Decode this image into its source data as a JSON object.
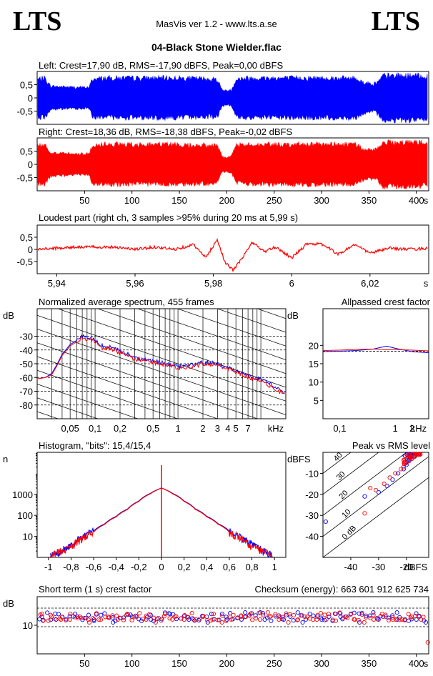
{
  "header": {
    "logo_left": "LTS",
    "logo_right": "LTS",
    "app_title": "MasVis ver 1.2 - www.lts.a.se",
    "file_name": "04-Black Stone Wielder.flac"
  },
  "colors": {
    "left": "#0000ff",
    "right": "#ff0000",
    "axis": "#000000",
    "grid": "#000000"
  },
  "chart_data": [
    {
      "id": "left-waveform",
      "type": "area",
      "title": "Left: Crest=17,90 dB, RMS=-17,90 dBFS, Peak=0,00 dBFS",
      "xlabel": "s",
      "ylim": [
        -1,
        1
      ],
      "xlim": [
        0,
        413
      ],
      "yticks": [
        "0,5",
        "0",
        "-0,5"
      ],
      "ytick_values": [
        0.5,
        0,
        -0.5
      ],
      "envelope_x": [
        0,
        8,
        14,
        40,
        55,
        58,
        70,
        100,
        150,
        190,
        195,
        200,
        205,
        210,
        220,
        250,
        300,
        335,
        345,
        355,
        360,
        365,
        370,
        400,
        413
      ],
      "envelope": [
        0.8,
        0.85,
        0.5,
        0.45,
        0.45,
        0.8,
        0.85,
        0.85,
        0.85,
        0.8,
        0.35,
        0.3,
        0.35,
        0.8,
        0.85,
        0.85,
        0.85,
        0.85,
        0.65,
        0.6,
        0.7,
        0.95,
        0.95,
        0.95,
        0.9
      ]
    },
    {
      "id": "right-waveform",
      "type": "area",
      "title": "Right: Crest=18,36 dB, RMS=-18,38 dBFS, Peak=-0,02 dBFS",
      "xlabel": "s",
      "ylim": [
        -1,
        1
      ],
      "xlim": [
        0,
        413
      ],
      "yticks": [
        "0,5",
        "0",
        "-0,5"
      ],
      "ytick_values": [
        0.5,
        0,
        -0.5
      ],
      "xticks": [
        "50",
        "100",
        "150",
        "200",
        "250",
        "300",
        "350",
        "400"
      ],
      "xtick_values": [
        50,
        100,
        150,
        200,
        250,
        300,
        350,
        400
      ],
      "envelope_x": [
        0,
        8,
        14,
        40,
        55,
        58,
        70,
        100,
        150,
        190,
        195,
        200,
        205,
        210,
        220,
        250,
        300,
        335,
        345,
        355,
        360,
        365,
        370,
        400,
        413
      ],
      "envelope": [
        0.8,
        0.85,
        0.5,
        0.45,
        0.45,
        0.8,
        0.85,
        0.85,
        0.85,
        0.8,
        0.35,
        0.3,
        0.35,
        0.8,
        0.85,
        0.85,
        0.85,
        0.85,
        0.65,
        0.6,
        0.7,
        0.95,
        0.95,
        0.95,
        0.9
      ]
    },
    {
      "id": "loudest-part",
      "type": "line",
      "title": "Loudest part (right ch, 3 samples >95% during 20 ms at 5,99 s)",
      "xlabel": "s",
      "xlim": [
        5.935,
        6.035
      ],
      "ylim": [
        -1,
        1
      ],
      "yticks": [
        "0,5",
        "0",
        "-0,5"
      ],
      "ytick_values": [
        0.5,
        0,
        -0.5
      ],
      "xticks": [
        "5,94",
        "5,96",
        "5,98",
        "6",
        "6,02"
      ],
      "xtick_values": [
        5.94,
        5.96,
        5.98,
        6.0,
        6.02
      ],
      "x": [
        5.935,
        5.94,
        5.945,
        5.95,
        5.955,
        5.96,
        5.965,
        5.97,
        5.975,
        5.978,
        5.981,
        5.983,
        5.985,
        5.987,
        5.99,
        5.993,
        5.996,
        6.0,
        6.004,
        6.008,
        6.012,
        6.016,
        6.02,
        6.025,
        6.03,
        6.035
      ],
      "y": [
        0.0,
        0.05,
        0.1,
        0.1,
        0.1,
        0.0,
        0.1,
        0.0,
        0.2,
        -0.35,
        0.4,
        -0.55,
        -0.85,
        -0.45,
        0.3,
        -0.1,
        0.1,
        -0.35,
        0.25,
        0.2,
        -0.2,
        0.2,
        -0.15,
        0.05,
        0.0,
        0.05
      ]
    },
    {
      "id": "average-spectrum",
      "type": "line",
      "title": "Normalized average spectrum, 455 frames",
      "ylabel": "dB",
      "xlabel": "kHz",
      "xscale": "log",
      "xlim": [
        0.02,
        20
      ],
      "ylim": [
        -90,
        -10
      ],
      "yticks": [
        "-30",
        "-40",
        "-50",
        "-60",
        "-70",
        "-80"
      ],
      "ytick_values": [
        -30,
        -40,
        -50,
        -60,
        -70,
        -80
      ],
      "xticks": [
        "0,05",
        "0,1",
        "0,2",
        "0,5",
        "1",
        "2",
        "3",
        "4",
        "5",
        "7"
      ],
      "xtick_values": [
        0.05,
        0.1,
        0.2,
        0.5,
        1,
        2,
        3,
        4,
        5,
        7
      ],
      "series": [
        {
          "color": "#0000ff",
          "x": [
            0.02,
            0.025,
            0.03,
            0.035,
            0.04,
            0.05,
            0.06,
            0.07,
            0.08,
            0.1,
            0.12,
            0.15,
            0.2,
            0.25,
            0.3,
            0.4,
            0.5,
            0.7,
            1,
            1.5,
            2,
            3,
            4,
            5,
            7,
            10,
            14,
            20
          ],
          "y": [
            -61,
            -60,
            -57,
            -50,
            -43,
            -36,
            -33,
            -30,
            -31,
            -33,
            -37,
            -38,
            -41,
            -43,
            -46,
            -46,
            -48,
            -50,
            -52,
            -51,
            -49,
            -50,
            -53,
            -55,
            -59,
            -61,
            -66,
            -72
          ]
        },
        {
          "color": "#ff0000",
          "x": [
            0.02,
            0.025,
            0.03,
            0.035,
            0.04,
            0.05,
            0.06,
            0.07,
            0.08,
            0.1,
            0.12,
            0.15,
            0.2,
            0.25,
            0.3,
            0.4,
            0.5,
            0.7,
            1,
            1.5,
            2,
            3,
            4,
            5,
            7,
            10,
            14,
            20
          ],
          "y": [
            -61,
            -60,
            -58,
            -51,
            -44,
            -37,
            -34,
            -31,
            -32,
            -34,
            -38,
            -39,
            -42,
            -44,
            -47,
            -47,
            -49,
            -51,
            -53,
            -52,
            -50,
            -51,
            -54,
            -56,
            -60,
            -62,
            -68,
            -73
          ]
        }
      ]
    },
    {
      "id": "allpassed-crest",
      "type": "line",
      "title": "Allpassed crest factor",
      "ylabel": "dB",
      "xlabel": "kHz",
      "xscale": "log",
      "xlim": [
        0.05,
        4
      ],
      "ylim": [
        0,
        30
      ],
      "yticks": [
        "20",
        "15",
        "10",
        "5"
      ],
      "ytick_values": [
        20,
        15,
        10,
        5
      ],
      "xticks": [
        "0,1",
        "1",
        "2"
      ],
      "xtick_values": [
        0.1,
        1,
        2
      ],
      "series": [
        {
          "color": "#0000ff",
          "x": [
            0.05,
            0.1,
            0.2,
            0.4,
            0.7,
            1,
            2,
            4
          ],
          "y": [
            18.3,
            18.4,
            18.6,
            19.0,
            19.8,
            19.2,
            18.3,
            18.0
          ]
        },
        {
          "color": "#ff0000",
          "x": [
            0.05,
            0.1,
            0.2,
            0.4,
            0.7,
            1,
            2,
            4
          ],
          "y": [
            18.6,
            18.7,
            18.9,
            19.0,
            18.8,
            18.9,
            18.7,
            18.5
          ]
        }
      ]
    },
    {
      "id": "histogram",
      "type": "line",
      "title": "Histogram, \"bits\": 15,4/15,4",
      "ylabel": "n",
      "yscale": "log",
      "xlim": [
        -1.1,
        1.1
      ],
      "ylim": [
        1,
        100000
      ],
      "yticks": [
        "1000",
        "100",
        "10"
      ],
      "ytick_values": [
        1000,
        100,
        10
      ],
      "xticks": [
        "-1",
        "-0,8",
        "-0,6",
        "-0,4",
        "-0,2",
        "0",
        "0,2",
        "0,4",
        "0,6",
        "0,8",
        "1"
      ],
      "xtick_values": [
        -1,
        -0.8,
        -0.6,
        -0.4,
        -0.2,
        0,
        0.2,
        0.4,
        0.6,
        0.8,
        1
      ],
      "series": [
        {
          "color": "#0000ff",
          "x": [
            -1,
            -0.9,
            -0.8,
            -0.7,
            -0.6,
            -0.5,
            -0.4,
            -0.3,
            -0.2,
            -0.1,
            0,
            0.1,
            0.2,
            0.3,
            0.4,
            0.5,
            0.6,
            0.7,
            0.8,
            0.9,
            1
          ],
          "y": [
            1,
            2,
            4,
            9,
            18,
            40,
            90,
            200,
            480,
            1100,
            2000,
            1100,
            480,
            200,
            90,
            40,
            18,
            9,
            4,
            2,
            1
          ]
        },
        {
          "color": "#ff0000",
          "x": [
            -1,
            -0.9,
            -0.8,
            -0.7,
            -0.6,
            -0.5,
            -0.4,
            -0.3,
            -0.2,
            -0.1,
            0,
            0.1,
            0.2,
            0.3,
            0.4,
            0.5,
            0.6,
            0.7,
            0.8,
            0.9,
            1
          ],
          "y": [
            1,
            2,
            3,
            8,
            16,
            38,
            85,
            190,
            460,
            1050,
            2000,
            1050,
            460,
            190,
            85,
            38,
            16,
            8,
            3,
            2,
            1
          ]
        }
      ]
    },
    {
      "id": "peak-vs-rms",
      "type": "scatter",
      "title": "Peak vs RMS level",
      "ylabel": "dBFS",
      "xlabel": "dBFS",
      "xlim": [
        -50,
        -12
      ],
      "ylim": [
        -50,
        0
      ],
      "yticks": [
        "-10",
        "-20",
        "-30",
        "-40"
      ],
      "ytick_values": [
        -10,
        -20,
        -30,
        -40
      ],
      "xticks": [
        "-40",
        "-30",
        "-20"
      ],
      "xtick_values": [
        -40,
        -30,
        -20
      ],
      "diagonal_labels": [
        "40",
        "30",
        "20",
        "10",
        "0 dB"
      ],
      "series": [
        {
          "color": "#0000ff",
          "x": [
            -49,
            -35,
            -30,
            -27,
            -25,
            -23,
            -21,
            -20,
            -19,
            -18,
            -17,
            -16
          ],
          "y": [
            -33,
            -21,
            -19,
            -16,
            -13,
            -10,
            -8,
            -6,
            -4,
            -3,
            -2,
            -1
          ]
        },
        {
          "color": "#ff0000",
          "x": [
            -35,
            -33,
            -31,
            -28,
            -26,
            -24,
            -22,
            -21,
            -20,
            -19,
            -18,
            -17,
            -16,
            -15
          ],
          "y": [
            -29,
            -17,
            -18,
            -15,
            -12,
            -10,
            -8,
            -7,
            -5,
            -4,
            -3,
            -2,
            -1,
            -1
          ]
        }
      ]
    },
    {
      "id": "short-term-crest",
      "type": "scatter",
      "title": "Short term (1 s) crest factor",
      "ylabel": "dB",
      "xlabel": "s",
      "xlim": [
        0,
        413
      ],
      "ylim": [
        0,
        20
      ],
      "yticks": [
        "10"
      ],
      "ytick_values": [
        10
      ],
      "xticks": [
        "50",
        "100",
        "150",
        "200",
        "250",
        "300",
        "350",
        "400"
      ],
      "xtick_values": [
        50,
        100,
        150,
        200,
        250,
        300,
        350,
        400
      ],
      "checksum_label": "Checksum (energy):",
      "checksum_value": "663 601 912 625 734",
      "series": [
        {
          "color": "#0000ff",
          "x": [
            5,
            20,
            40,
            60,
            80,
            100,
            120,
            140,
            160,
            180,
            200,
            220,
            240,
            260,
            280,
            300,
            320,
            340,
            360,
            380,
            400,
            410
          ],
          "y": [
            13,
            12,
            14,
            12,
            11,
            13,
            12,
            14,
            12,
            11,
            12,
            13,
            12,
            12,
            11,
            12,
            13,
            11,
            12,
            12,
            12,
            11
          ]
        },
        {
          "color": "#ff0000",
          "x": [
            5,
            15,
            25,
            35,
            45,
            55,
            65,
            75,
            85,
            95,
            105,
            115,
            125,
            135,
            145,
            155,
            165,
            175,
            185,
            195,
            205,
            215,
            225,
            235,
            245,
            255,
            265,
            275,
            285,
            295,
            305,
            315,
            325,
            335,
            345,
            355,
            365,
            375,
            385,
            395,
            405,
            412
          ],
          "y": [
            14,
            13,
            12,
            14,
            13,
            11,
            12,
            13,
            12,
            14,
            13,
            12,
            11,
            14,
            13,
            12,
            12,
            13,
            12,
            11,
            12,
            13,
            14,
            12,
            13,
            12,
            11,
            12,
            13,
            12,
            12,
            14,
            13,
            12,
            11,
            12,
            13,
            12,
            12,
            13,
            12,
            4
          ]
        }
      ]
    }
  ]
}
